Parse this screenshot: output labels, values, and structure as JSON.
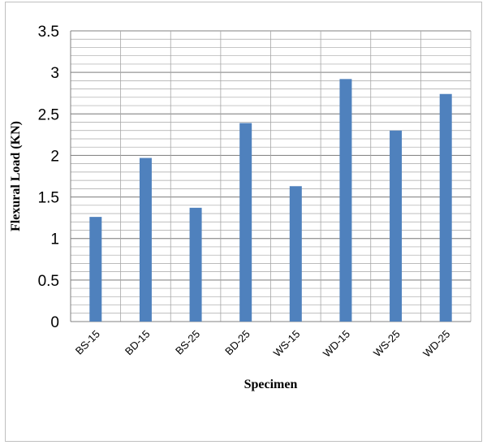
{
  "chart_data": {
    "type": "bar",
    "title": "",
    "xlabel": "Specimen",
    "ylabel": "Flexural Load (KN)",
    "categories": [
      "BS-15",
      "BD-15",
      "BS-25",
      "BD-25",
      "WS-15",
      "WD-15",
      "WS-25",
      "WD-25"
    ],
    "values": [
      1.26,
      1.97,
      1.37,
      2.39,
      1.63,
      2.92,
      2.3,
      2.74
    ],
    "ylim": [
      0,
      3.5
    ],
    "major_ticks": [
      0,
      0.5,
      1,
      1.5,
      2,
      2.5,
      3,
      3.5
    ],
    "minor_step": 0.1,
    "grid": true,
    "legend": "none",
    "colors": {
      "bar": "#4f81bd",
      "grid": "#a6a6a6",
      "frame": "#bfbfbf"
    }
  }
}
